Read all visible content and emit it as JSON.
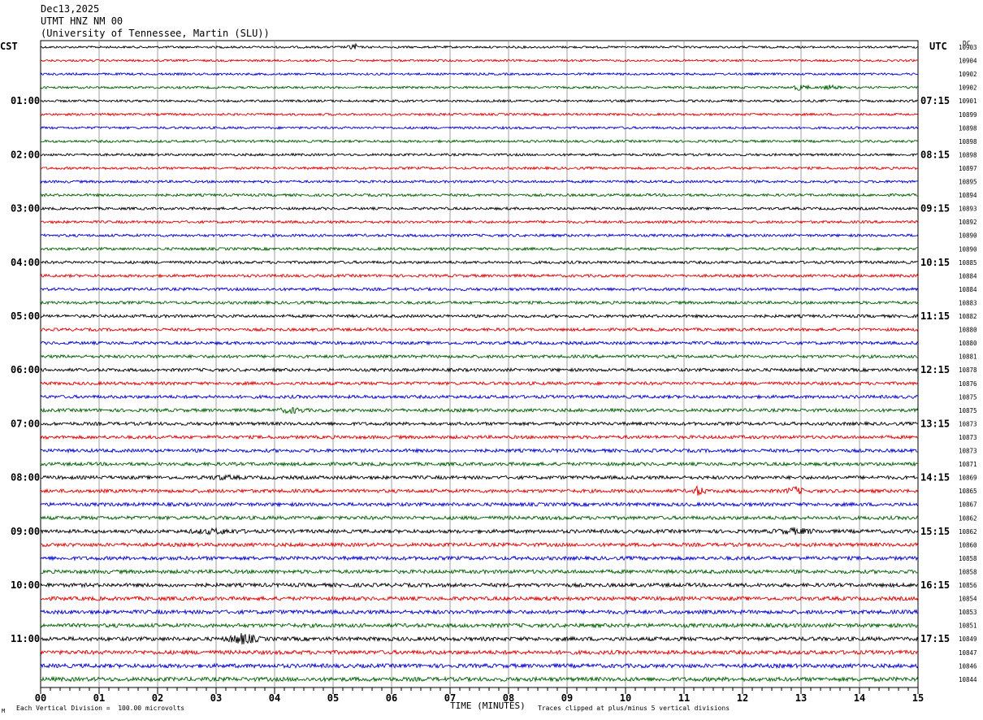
{
  "header": {
    "date": "Dec13,2025",
    "station": "UTMT HNZ NM 00",
    "institution": "(University of Tennessee, Martin (SLU))"
  },
  "left_axis_label": "CST",
  "right_axis_label": "UTC",
  "dc_label": "DC",
  "footer": {
    "vertical_division": "Each Vertical Division =  100.00 microvolts",
    "clip_note": "Traces clipped at plus/minus 5 vertical divisions",
    "corner_mark": "M"
  },
  "colors": {
    "trace_cycle": [
      "#000000",
      "#e00000",
      "#0000d0",
      "#006000"
    ],
    "grid": "#888888"
  },
  "chart_data": {
    "type": "line",
    "xlabel": "TIME (MINUTES)",
    "x_ticks": [
      "00",
      "01",
      "02",
      "03",
      "04",
      "05",
      "06",
      "07",
      "08",
      "09",
      "10",
      "11",
      "12",
      "13",
      "14",
      "15"
    ],
    "xlim": [
      0,
      15
    ],
    "rows_per_hour": 4,
    "row_count": 48,
    "left_hour_labels": [
      "01:00",
      "02:00",
      "03:00",
      "04:00",
      "05:00",
      "06:00",
      "07:00",
      "08:00",
      "09:00",
      "10:00",
      "11:00"
    ],
    "right_hour_labels": [
      "07:15",
      "08:15",
      "09:15",
      "10:15",
      "11:15",
      "12:15",
      "13:15",
      "14:15",
      "15:15",
      "16:15",
      "17:15"
    ],
    "dc_values": [
      "10903",
      "10904",
      "10902",
      "10902",
      "10901",
      "10899",
      "10898",
      "10898",
      "10898",
      "10897",
      "10895",
      "10894",
      "10893",
      "10892",
      "10890",
      "10890",
      "10885",
      "10884",
      "10884",
      "10883",
      "10882",
      "10880",
      "10880",
      "10881",
      "10878",
      "10876",
      "10875",
      "10875",
      "10873",
      "10873",
      "10873",
      "10871",
      "10869",
      "10865",
      "10867",
      "10862",
      "10862",
      "10860",
      "10858",
      "10858",
      "10856",
      "10854",
      "10853",
      "10851",
      "10849",
      "10847",
      "10846",
      "10844"
    ]
  }
}
